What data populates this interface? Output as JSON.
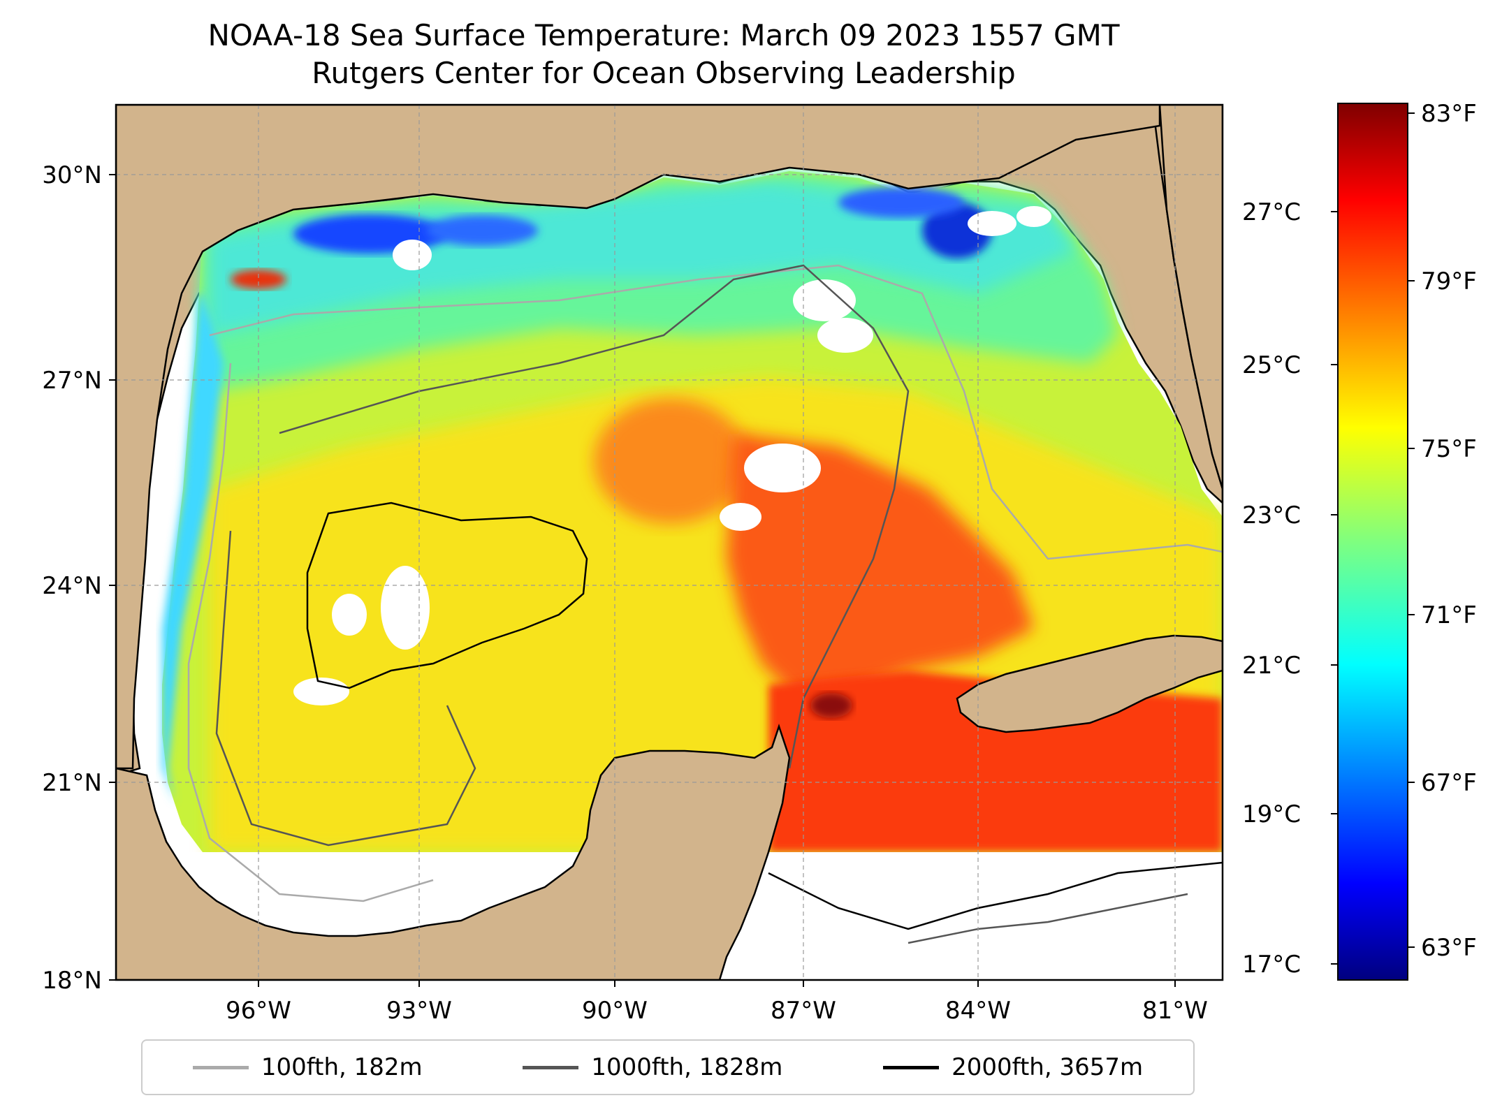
{
  "title_line1": "NOAA-18 Sea Surface Temperature: March 09 2023 1557 GMT",
  "title_line2": "Rutgers Center for Ocean Observing Leadership",
  "map": {
    "land_color": "#d2b48c",
    "missing_color": "#ffffff",
    "lat_ticks": [
      "30°N",
      "27°N",
      "24°N",
      "21°N",
      "18°N"
    ],
    "lon_ticks": [
      "96°W",
      "93°W",
      "90°W",
      "87°W",
      "84°W",
      "81°W"
    ]
  },
  "colorbar": {
    "colormap": "jet",
    "celsius_ticks": [
      "27°C",
      "25°C",
      "23°C",
      "21°C",
      "19°C",
      "17°C"
    ],
    "fahrenheit_ticks": [
      "83°F",
      "79°F",
      "75°F",
      "71°F",
      "67°F",
      "63°F"
    ]
  },
  "legend": [
    {
      "label": "100fth, 182m",
      "color": "#aaaaaa"
    },
    {
      "label": "1000fth, 1828m",
      "color": "#555555"
    },
    {
      "label": "2000fth, 3657m",
      "color": "#000000"
    }
  ]
}
